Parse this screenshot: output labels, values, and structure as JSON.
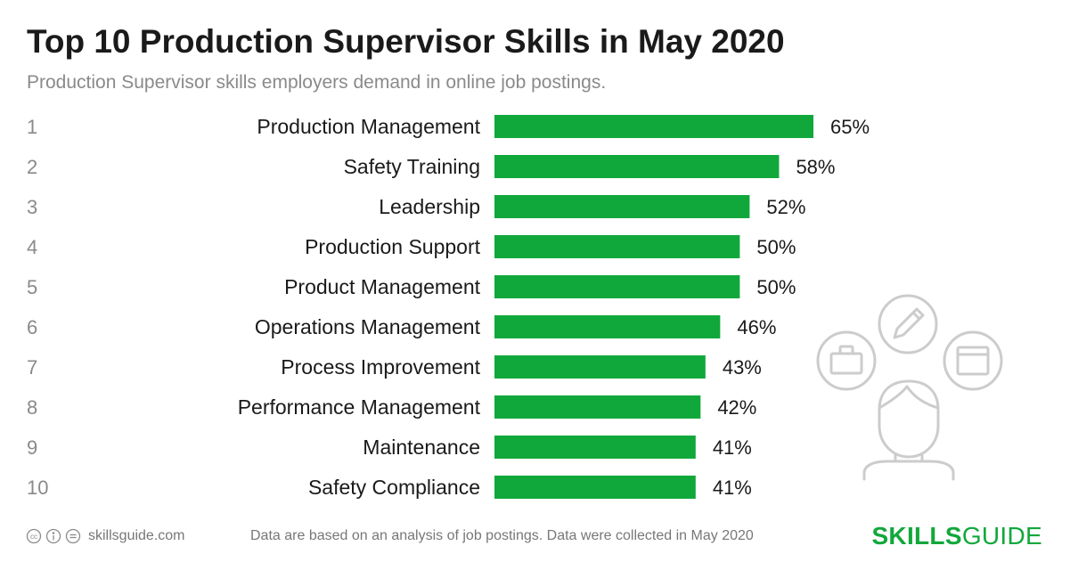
{
  "header": {
    "title": "Top 10 Production Supervisor Skills in May 2020",
    "subtitle": "Production Supervisor skills employers demand in online job postings."
  },
  "chart_data": {
    "type": "bar",
    "orientation": "horizontal",
    "title": "Top 10 Production Supervisor Skills in May 2020",
    "subtitle": "Production Supervisor skills employers demand in online job postings.",
    "ranks": [
      "1",
      "2",
      "3",
      "4",
      "5",
      "6",
      "7",
      "8",
      "9",
      "10"
    ],
    "categories": [
      "Production Management",
      "Safety Training",
      "Leadership",
      "Production Support",
      "Product Management",
      "Operations Management",
      "Process Improvement",
      "Performance Management",
      "Maintenance",
      "Safety Compliance"
    ],
    "values": [
      65,
      58,
      52,
      50,
      50,
      46,
      43,
      42,
      41,
      41
    ],
    "value_labels": [
      "65%",
      "58%",
      "52%",
      "50%",
      "50%",
      "46%",
      "43%",
      "42%",
      "41%",
      "41%"
    ],
    "unit": "%",
    "bar_color": "#11a83b",
    "grid": false,
    "legend": "none"
  },
  "footer": {
    "site": "skillsguide.com",
    "note": "Data are based on an analysis of job postings. Data were collected in May 2020",
    "brand_bold": "SKILLS",
    "brand_light": "GUIDE",
    "license_icons": [
      "cc-icon",
      "by-attribution-icon",
      "no-derivatives-icon"
    ]
  },
  "colors": {
    "accent": "#11a83b",
    "text_dark": "#1a1a1a",
    "text_muted": "#8a8a8a",
    "illustration_stroke": "#cccccc"
  }
}
